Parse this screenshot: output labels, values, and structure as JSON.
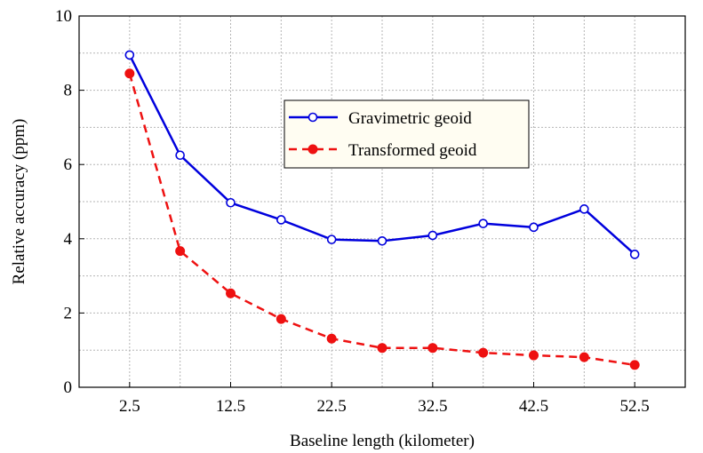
{
  "chart_data": {
    "type": "line",
    "xlabel": "Baseline length (kilometer)",
    "ylabel": "Relative accuracy (ppm)",
    "xlim": [
      -2.5,
      57.5
    ],
    "ylim": [
      0,
      10
    ],
    "x_tick_values": [
      2.5,
      12.5,
      22.5,
      32.5,
      42.5,
      52.5
    ],
    "x_tick_labels": [
      "2.5",
      "12.5",
      "22.5",
      "32.5",
      "42.5",
      "52.5"
    ],
    "y_tick_values": [
      0,
      2,
      4,
      6,
      8,
      10
    ],
    "y_tick_labels": [
      "0",
      "2",
      "4",
      "6",
      "8",
      "10"
    ],
    "grid": true,
    "legend_position": "top-center-right",
    "x": [
      2.5,
      7.5,
      12.5,
      17.5,
      22.5,
      27.5,
      32.5,
      37.5,
      42.5,
      47.5,
      52.5
    ],
    "series": [
      {
        "name": "Gravimetric geoid",
        "color": "#0000dd",
        "line_style": "solid",
        "marker": "open-circle",
        "values": [
          8.95,
          6.25,
          4.97,
          4.51,
          3.98,
          3.94,
          4.09,
          4.41,
          4.31,
          4.8,
          3.58
        ]
      },
      {
        "name": "Transformed geoid",
        "color": "#ee1111",
        "line_style": "dashed",
        "marker": "filled-circle",
        "values": [
          8.45,
          3.67,
          2.53,
          1.84,
          1.31,
          1.06,
          1.06,
          0.93,
          0.86,
          0.81,
          0.6
        ]
      }
    ]
  }
}
